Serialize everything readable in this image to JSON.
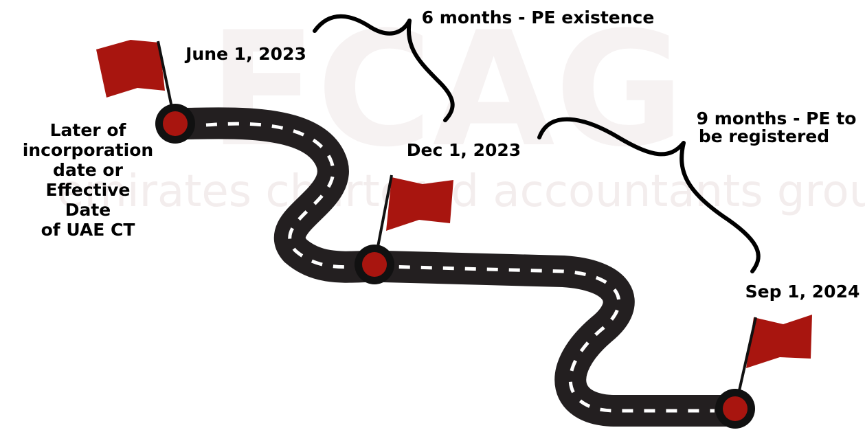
{
  "watermark": {
    "logo": "ECAG",
    "tagline": "emirates chartered accountants group"
  },
  "start_label": [
    "Later of",
    "incorporation",
    "date or",
    "Effective",
    "Date",
    "of UAE CT"
  ],
  "milestones": [
    {
      "date": "June 1, 2023"
    },
    {
      "date": "Dec 1, 2023"
    },
    {
      "date": "Sep 1, 2024"
    }
  ],
  "periods": [
    {
      "lines": [
        "6 months - PE existence"
      ]
    },
    {
      "lines": [
        "9 months - PE to",
        "be registered"
      ]
    }
  ]
}
